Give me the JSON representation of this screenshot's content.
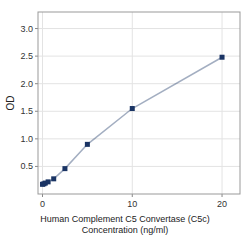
{
  "chart_data": {
    "type": "line",
    "xlabel": "Human Complement C5 Convertase (C5c)\nConcentration (ng/ml)",
    "ylabel": "OD",
    "x": [
      0,
      0.156,
      0.313,
      0.625,
      1.25,
      2.5,
      5,
      10,
      20
    ],
    "series": [
      {
        "color": "#1a3464",
        "marker": "square",
        "values": [
          0.176,
          0.184,
          0.198,
          0.22,
          0.275,
          0.46,
          0.9,
          1.55,
          2.48
        ]
      }
    ],
    "xlim": [
      -0.5,
      22
    ],
    "ylim": [
      0.0,
      3.3
    ],
    "xticks": [
      0,
      10,
      20
    ],
    "yticks": [
      0.5,
      {
        "value": 1.0,
        "label": "1.0"
      },
      1.5,
      {
        "value": 2.0,
        "label": "2.0"
      },
      2.5,
      {
        "value": 3.0,
        "label": "3.0"
      }
    ],
    "grid": true
  }
}
